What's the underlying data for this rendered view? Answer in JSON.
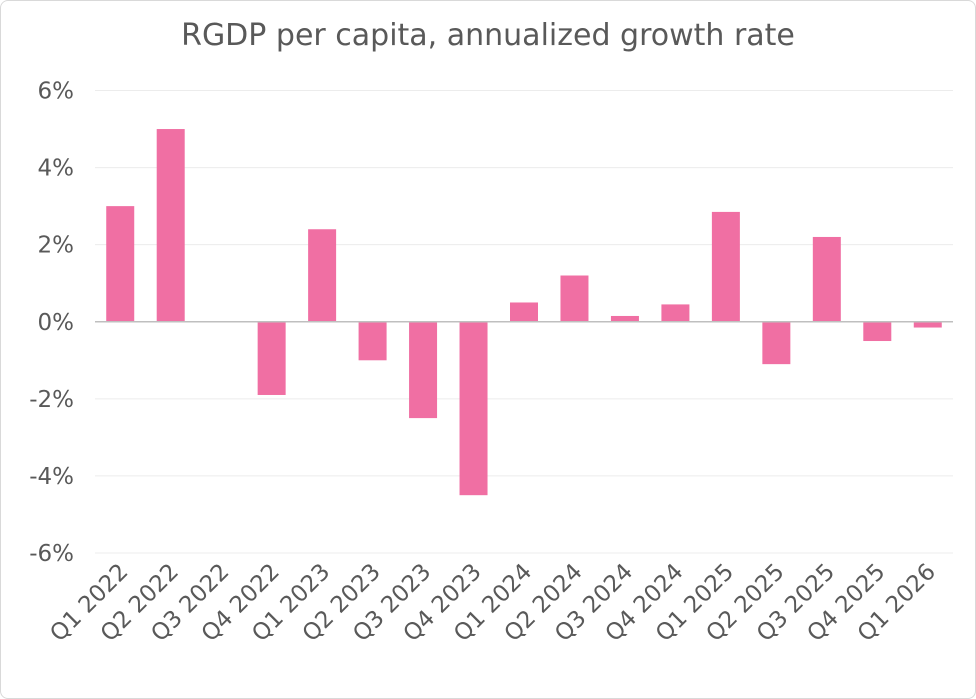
{
  "chart_data": {
    "type": "bar",
    "title": "RGDP per capita, annualized growth rate",
    "xlabel": "",
    "ylabel": "",
    "categories": [
      "Q1 2022",
      "Q2 2022",
      "Q3 2022",
      "Q4 2022",
      "Q1 2023",
      "Q2 2023",
      "Q3 2023",
      "Q4 2023",
      "Q1 2024",
      "Q2 2024",
      "Q3 2024",
      "Q4 2024",
      "Q1 2025",
      "Q2 2025",
      "Q3 2025",
      "Q4 2025",
      "Q1 2026"
    ],
    "values": [
      3.0,
      5.0,
      0.0,
      -1.9,
      2.4,
      -1.0,
      -2.5,
      -4.5,
      0.5,
      1.2,
      0.15,
      0.45,
      2.85,
      -1.1,
      2.2,
      -0.5,
      -0.15
    ],
    "ylim": [
      -6,
      6
    ],
    "yticks": [
      6,
      4,
      2,
      0,
      -2,
      -4,
      -6
    ],
    "ytick_labels": [
      "6%",
      "4%",
      "2%",
      "0%",
      "-2%",
      "-4%",
      "-6%"
    ],
    "grid": true,
    "legend": "none",
    "bar_color": "#f06fa3",
    "grid_color": "#ececec",
    "axis_color": "#bfbfbf"
  }
}
